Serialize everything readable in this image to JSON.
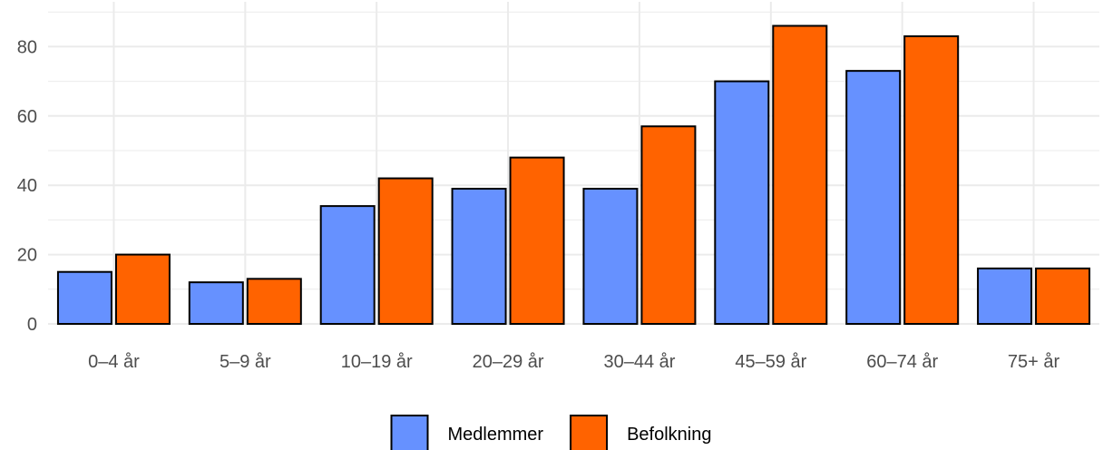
{
  "chart_data": {
    "type": "bar",
    "title": "",
    "xlabel": "",
    "ylabel": "",
    "categories": [
      "0–4 år",
      "5–9 år",
      "10–19 år",
      "20–29 år",
      "30–44 år",
      "45–59 år",
      "60–74 år",
      "75+ år"
    ],
    "series": [
      {
        "name": "Medlemmer",
        "color": "#6691ff",
        "values": [
          15,
          12,
          34,
          39,
          39,
          70,
          73,
          16
        ]
      },
      {
        "name": "Befolkning",
        "color": "#ff6300",
        "values": [
          20,
          13,
          42,
          48,
          57,
          86,
          83,
          16
        ]
      }
    ],
    "ylim": [
      0,
      90
    ],
    "yticks": [
      0,
      20,
      40,
      60,
      80
    ],
    "grid": true,
    "legend_position": "bottom"
  }
}
